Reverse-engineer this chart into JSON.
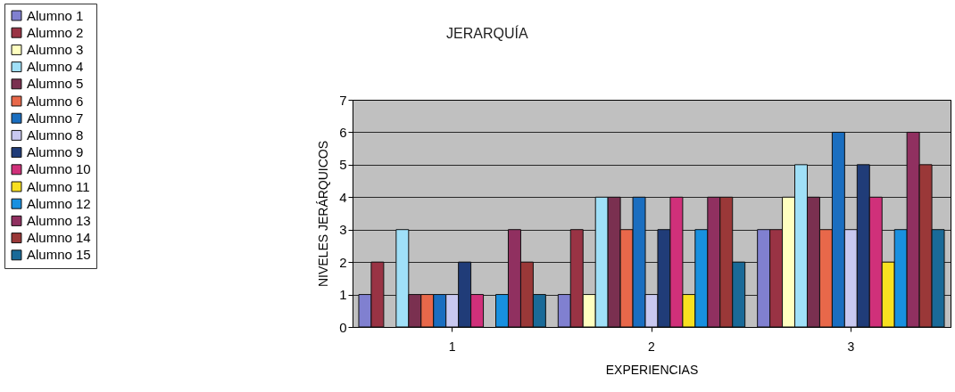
{
  "chart_data": {
    "type": "bar",
    "title": "JERARQUÍA",
    "xlabel": "EXPERIENCIAS",
    "ylabel": "NIVELES JERÁRQUICOS",
    "categories": [
      "1",
      "2",
      "3"
    ],
    "series": [
      {
        "name": "Alumno 1",
        "color": "#8080d0",
        "values": [
          1,
          1,
          3
        ]
      },
      {
        "name": "Alumno 2",
        "color": "#993344",
        "values": [
          2,
          3,
          3
        ]
      },
      {
        "name": "Alumno 3",
        "color": "#ffffc0",
        "values": [
          null,
          1,
          4
        ]
      },
      {
        "name": "Alumno 4",
        "color": "#a0e0f8",
        "values": [
          3,
          4,
          5
        ]
      },
      {
        "name": "Alumno 5",
        "color": "#7a3050",
        "values": [
          1,
          4,
          4
        ]
      },
      {
        "name": "Alumno 6",
        "color": "#e8684a",
        "values": [
          1,
          3,
          3
        ]
      },
      {
        "name": "Alumno 7",
        "color": "#1a6ec0",
        "values": [
          1,
          4,
          6
        ]
      },
      {
        "name": "Alumno 8",
        "color": "#c8c8f0",
        "values": [
          1,
          1,
          3
        ]
      },
      {
        "name": "Alumno 9",
        "color": "#203c78",
        "values": [
          2,
          3,
          5
        ]
      },
      {
        "name": "Alumno 10",
        "color": "#d0307a",
        "values": [
          1,
          4,
          4
        ]
      },
      {
        "name": "Alumno 11",
        "color": "#f8e020",
        "values": [
          null,
          1,
          2
        ]
      },
      {
        "name": "Alumno 12",
        "color": "#1890e0",
        "values": [
          1,
          3,
          3
        ]
      },
      {
        "name": "Alumno 13",
        "color": "#903060",
        "values": [
          3,
          4,
          6
        ]
      },
      {
        "name": "Alumno 14",
        "color": "#9a3838",
        "values": [
          2,
          4,
          5
        ]
      },
      {
        "name": "Alumno 15",
        "color": "#1a6a98",
        "values": [
          1,
          2,
          3
        ]
      }
    ],
    "ylim": [
      0,
      7
    ],
    "yticks": [
      0,
      1,
      2,
      3,
      4,
      5,
      6,
      7
    ],
    "grid": "y",
    "legend": "left"
  }
}
